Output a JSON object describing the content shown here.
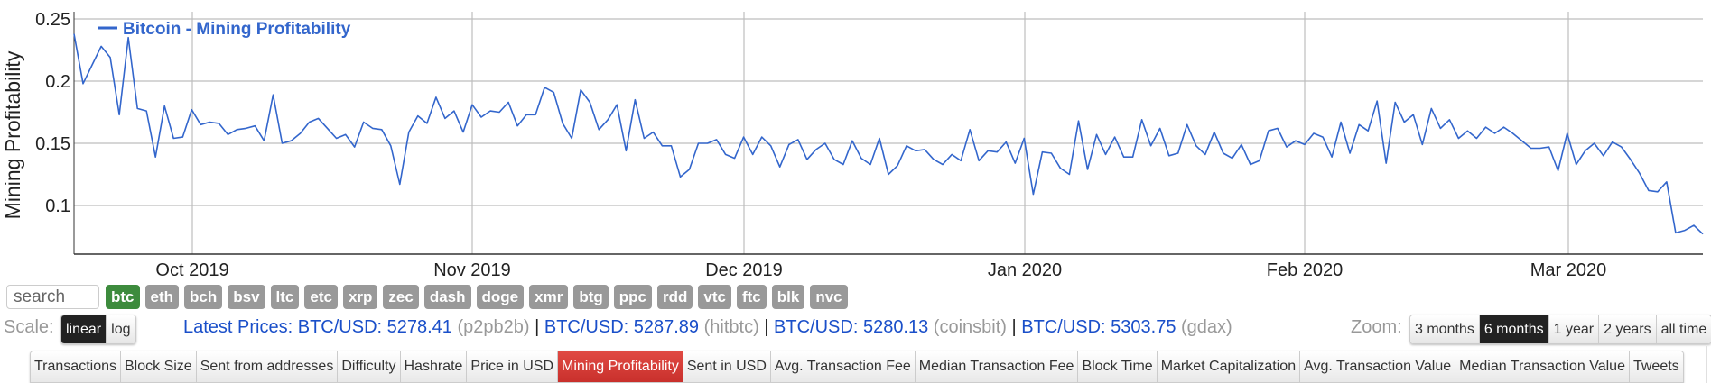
{
  "chart_data": {
    "type": "line",
    "title": "Bitcoin - Mining Profitability",
    "xlabel": "",
    "ylabel": "Mining Profitability",
    "ylim": [
      0.063,
      0.258
    ],
    "yticks": [
      0.1,
      0.15,
      0.2,
      0.25
    ],
    "ytick_labels": [
      "0.1",
      "0.15",
      "0.2",
      "0.25"
    ],
    "xtick_labels": [
      "Oct 2019",
      "Nov 2019",
      "Dec 2019",
      "Jan 2020",
      "Feb 2020",
      "Mar 2020"
    ],
    "grid": true,
    "legend_position": "top-left-inside",
    "series": [
      {
        "name": "Bitcoin - Mining Profitability",
        "color": "#3366cc",
        "x_start": "2019-09-18",
        "x_step": "1 day",
        "values": [
          0.238,
          0.198,
          0.213,
          0.228,
          0.219,
          0.173,
          0.235,
          0.178,
          0.176,
          0.139,
          0.18,
          0.154,
          0.155,
          0.177,
          0.165,
          0.167,
          0.166,
          0.157,
          0.161,
          0.162,
          0.164,
          0.152,
          0.189,
          0.15,
          0.152,
          0.158,
          0.167,
          0.17,
          0.162,
          0.154,
          0.157,
          0.147,
          0.167,
          0.162,
          0.161,
          0.148,
          0.117,
          0.159,
          0.172,
          0.166,
          0.187,
          0.17,
          0.176,
          0.159,
          0.181,
          0.171,
          0.176,
          0.175,
          0.183,
          0.164,
          0.173,
          0.173,
          0.195,
          0.191,
          0.166,
          0.154,
          0.193,
          0.183,
          0.161,
          0.169,
          0.181,
          0.144,
          0.185,
          0.154,
          0.159,
          0.148,
          0.148,
          0.123,
          0.129,
          0.15,
          0.15,
          0.153,
          0.141,
          0.138,
          0.155,
          0.141,
          0.155,
          0.148,
          0.131,
          0.149,
          0.153,
          0.137,
          0.145,
          0.15,
          0.137,
          0.133,
          0.152,
          0.138,
          0.133,
          0.154,
          0.125,
          0.132,
          0.148,
          0.144,
          0.145,
          0.137,
          0.133,
          0.141,
          0.136,
          0.161,
          0.136,
          0.144,
          0.143,
          0.151,
          0.134,
          0.154,
          0.109,
          0.143,
          0.142,
          0.13,
          0.125,
          0.168,
          0.129,
          0.157,
          0.141,
          0.155,
          0.139,
          0.139,
          0.169,
          0.148,
          0.162,
          0.14,
          0.142,
          0.165,
          0.148,
          0.141,
          0.159,
          0.142,
          0.138,
          0.149,
          0.133,
          0.136,
          0.16,
          0.162,
          0.147,
          0.152,
          0.149,
          0.158,
          0.155,
          0.139,
          0.167,
          0.142,
          0.165,
          0.16,
          0.184,
          0.134,
          0.183,
          0.167,
          0.173,
          0.149,
          0.178,
          0.162,
          0.169,
          0.154,
          0.16,
          0.154,
          0.163,
          0.158,
          0.163,
          0.158,
          0.152,
          0.146,
          0.146,
          0.147,
          0.128,
          0.158,
          0.133,
          0.144,
          0.15,
          0.14,
          0.151,
          0.147,
          0.137,
          0.126,
          0.112,
          0.111,
          0.119,
          0.078,
          0.08,
          0.084,
          0.077
        ]
      }
    ]
  },
  "search": {
    "placeholder": "search"
  },
  "coins": [
    {
      "label": "btc",
      "active": true
    },
    {
      "label": "eth"
    },
    {
      "label": "bch"
    },
    {
      "label": "bsv"
    },
    {
      "label": "ltc"
    },
    {
      "label": "etc"
    },
    {
      "label": "xrp"
    },
    {
      "label": "zec"
    },
    {
      "label": "dash"
    },
    {
      "label": "doge"
    },
    {
      "label": "xmr"
    },
    {
      "label": "btg"
    },
    {
      "label": "ppc"
    },
    {
      "label": "rdd"
    },
    {
      "label": "vtc"
    },
    {
      "label": "ftc"
    },
    {
      "label": "blk"
    },
    {
      "label": "nvc"
    }
  ],
  "scale": {
    "label": "Scale:",
    "options": [
      {
        "label": "linear",
        "active": true
      },
      {
        "label": "log"
      }
    ]
  },
  "prices": {
    "prefix": "Latest Prices:",
    "items": [
      {
        "pair": "BTC/USD:",
        "value": "5278.41",
        "source": "(p2pb2b)"
      },
      {
        "pair": "BTC/USD:",
        "value": "5287.89",
        "source": "(hitbtc)"
      },
      {
        "pair": "BTC/USD:",
        "value": "5280.13",
        "source": "(coinsbit)"
      },
      {
        "pair": "BTC/USD:",
        "value": "5303.75",
        "source": "(gdax)"
      }
    ],
    "separator": "|"
  },
  "zoom": {
    "label": "Zoom:",
    "options": [
      {
        "label": "3 months"
      },
      {
        "label": "6 months",
        "active": true
      },
      {
        "label": "1 year"
      },
      {
        "label": "2 years"
      },
      {
        "label": "all time"
      }
    ]
  },
  "tabs": [
    {
      "label": "Transactions"
    },
    {
      "label": "Block Size"
    },
    {
      "label": "Sent from addresses"
    },
    {
      "label": "Difficulty"
    },
    {
      "label": "Hashrate"
    },
    {
      "label": "Price in USD"
    },
    {
      "label": "Mining Profitability",
      "active": true
    },
    {
      "label": "Sent in USD"
    },
    {
      "label": "Avg. Transaction Fee"
    },
    {
      "label": "Median Transaction Fee"
    },
    {
      "label": "Block Time"
    },
    {
      "label": "Market Capitalization"
    },
    {
      "label": "Avg. Transaction Value"
    },
    {
      "label": "Median Transaction Value"
    },
    {
      "label": "Tweets"
    }
  ],
  "colors": {
    "line": "#3366cc",
    "active_coin": "#3d8b3d",
    "inactive_coin": "#999999",
    "active_tab": "#d9403a",
    "price_text": "#1a4fc9"
  }
}
